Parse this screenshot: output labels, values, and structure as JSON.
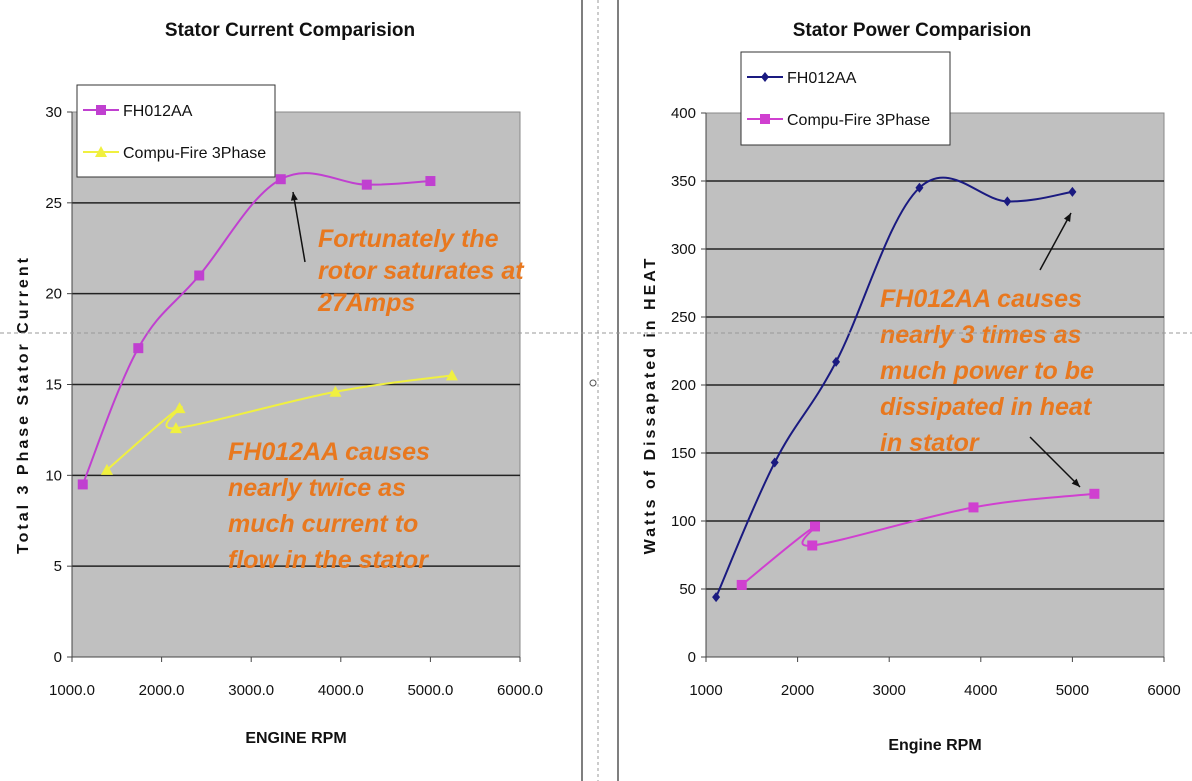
{
  "chart_data": [
    {
      "type": "line",
      "title": "Stator Current Comparision",
      "xlabel": "ENGINE RPM",
      "ylabel": "Total 3 Phase Stator Current",
      "xlim": [
        1000,
        6000
      ],
      "ylim": [
        0,
        30
      ],
      "xticks": [
        "1000.0",
        "2000.0",
        "3000.0",
        "4000.0",
        "5000.0",
        "6000.0"
      ],
      "yticks": [
        "0",
        "5",
        "10",
        "15",
        "20",
        "25",
        "30"
      ],
      "grid": true,
      "legend_position": "top-left",
      "series": [
        {
          "name": "FH012AA",
          "color": "#c040d0",
          "marker": "square",
          "x": [
            1120,
            1740,
            2420,
            3330,
            4290,
            5000
          ],
          "y": [
            9.5,
            17.0,
            21.0,
            26.3,
            26.0,
            26.2
          ]
        },
        {
          "name": "Compu-Fire 3Phase",
          "color": "#f0f040",
          "marker": "triangle",
          "x": [
            1390,
            2200,
            2160,
            3940,
            5240
          ],
          "y": [
            10.3,
            13.7,
            12.6,
            14.6,
            15.5
          ]
        }
      ],
      "annotations": [
        {
          "lines": [
            "Fortunately the",
            "rotor saturates at",
            "27Amps"
          ]
        },
        {
          "lines": [
            "FH012AA causes",
            "nearly twice as",
            "much current to",
            "flow in the stator"
          ]
        }
      ]
    },
    {
      "type": "line",
      "title": "Stator Power Comparision",
      "xlabel": "Engine RPM",
      "ylabel": "Watts of Dissapated in HEAT",
      "xlim": [
        1000,
        6000
      ],
      "ylim": [
        0,
        400
      ],
      "xticks": [
        "1000",
        "2000",
        "3000",
        "4000",
        "5000",
        "6000"
      ],
      "yticks": [
        "0",
        "50",
        "100",
        "150",
        "200",
        "250",
        "300",
        "350",
        "400"
      ],
      "grid": true,
      "legend_position": "top-left",
      "series": [
        {
          "name": "FH012AA",
          "color": "#1a1a80",
          "marker": "diamond",
          "x": [
            1110,
            1750,
            2420,
            3330,
            4290,
            5000
          ],
          "y": [
            44,
            143,
            217,
            345,
            335,
            342
          ]
        },
        {
          "name": "Compu-Fire 3Phase",
          "color": "#d040d0",
          "marker": "square",
          "x": [
            1390,
            2190,
            2160,
            3920,
            5240
          ],
          "y": [
            53,
            96,
            82,
            110,
            120
          ]
        }
      ],
      "annotations": [
        {
          "lines": [
            "FH012AA causes",
            "nearly 3 times as",
            "much power to be",
            "dissipated in heat",
            "in stator"
          ]
        }
      ]
    }
  ]
}
